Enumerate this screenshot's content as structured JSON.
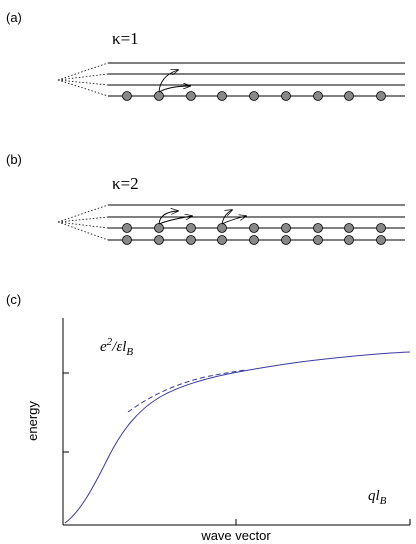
{
  "panels": [
    {
      "label": "(a)",
      "kappa": "κ=1"
    },
    {
      "label": "(b)",
      "kappa": "κ=2"
    },
    {
      "label": "(c)",
      "y_label": "energy",
      "x_label": "wave vector",
      "y_unit": {
        "base": "e",
        "sup": "2",
        "mid": "/εl",
        "sub": "B"
      },
      "x_unit": {
        "base": "ql",
        "sub": "B"
      }
    }
  ]
}
